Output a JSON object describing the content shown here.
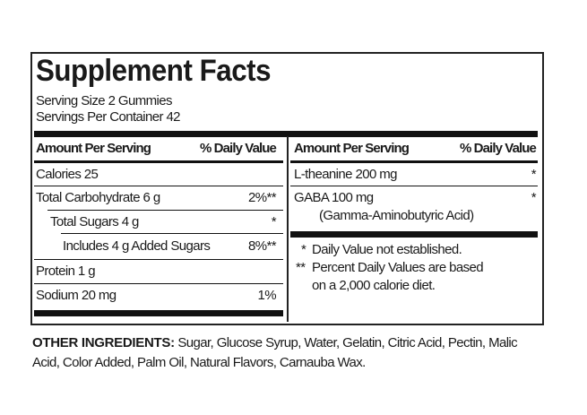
{
  "title": "Supplement Facts",
  "serving_size": "Serving Size 2 Gummies",
  "servings_per_container": "Servings Per Container 42",
  "left": {
    "header_amount": "Amount Per Serving",
    "header_dv": "% Daily Value",
    "rows": [
      {
        "label": "Calories  25",
        "dv": ""
      },
      {
        "label": "Total Carbohydrate  6 g",
        "dv": "2%**"
      },
      {
        "label": "Total Sugars  4 g",
        "dv": "*"
      },
      {
        "label": "Includes  4 g Added Sugars",
        "dv": "8%**"
      },
      {
        "label": "Protein  1 g",
        "dv": ""
      },
      {
        "label": "Sodium  20 mg",
        "dv": "1%"
      }
    ]
  },
  "right": {
    "header_amount": "Amount Per Serving",
    "header_dv": "% Daily Value",
    "rows": [
      {
        "label": "L-theanine  200 mg",
        "dv": "*"
      },
      {
        "label": "GABA  100 mg",
        "sub": "(Gamma-Aminobutyric Acid)",
        "dv": "*"
      }
    ],
    "footnote1_mark": "*",
    "footnote1": "Daily Value not established.",
    "footnote2_mark": "**",
    "footnote2": "Percent Daily Values are based",
    "footnote2b": "on a 2,000 calorie diet."
  },
  "ingredients": {
    "label": "OTHER INGREDIENTS:",
    "line1": "Sugar, Glucose Syrup, Water, Gelatin, Citric Acid, Pectin, Malic",
    "line2": "Acid, Color Added, Palm Oil, Natural Flavors, Carnauba Wax."
  }
}
